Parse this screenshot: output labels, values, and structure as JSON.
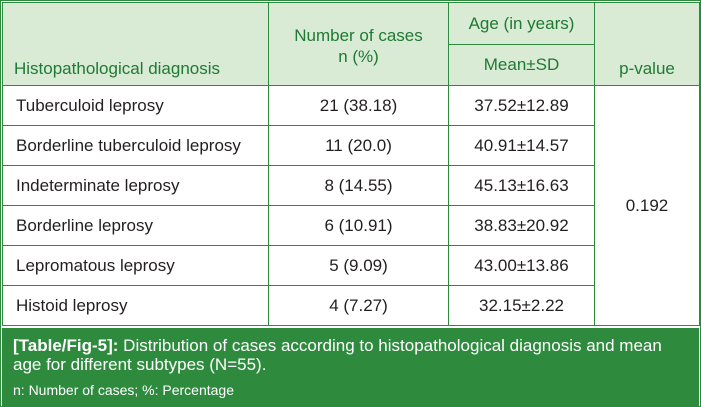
{
  "table": {
    "headers": {
      "diagnosis": "Histopathological diagnosis",
      "cases_line1": "Number of cases",
      "cases_line2": "n (%)",
      "age_group": "Age (in years)",
      "age_sub": "Mean±SD",
      "pvalue": "p-value"
    },
    "rows": [
      {
        "diagnosis": "Tuberculoid leprosy",
        "cases": "21 (38.18)",
        "age": "37.52±12.89"
      },
      {
        "diagnosis": "Borderline tuberculoid leprosy",
        "cases": "11 (20.0)",
        "age": "40.91±14.57"
      },
      {
        "diagnosis": "Indeterminate leprosy",
        "cases": "8 (14.55)",
        "age": "45.13±16.63"
      },
      {
        "diagnosis": "Borderline leprosy",
        "cases": "6 (10.91)",
        "age": "38.83±20.92"
      },
      {
        "diagnosis": "Lepromatous leprosy",
        "cases": "5 (9.09)",
        "age": "43.00±13.86"
      },
      {
        "diagnosis": "Histoid leprosy",
        "cases": "4 (7.27)",
        "age": "32.15±2.22"
      }
    ],
    "pvalue": "0.192"
  },
  "caption": {
    "label": "[Table/Fig-5]:",
    "text": " Distribution of cases according to histopathological diagnosis and mean age for different subtypes (N=55).",
    "note": "n: Number of cases; %: Percentage"
  },
  "colors": {
    "accent": "#2e8b3e",
    "header_bg": "#d9ead5",
    "header_text": "#1f7a34"
  }
}
